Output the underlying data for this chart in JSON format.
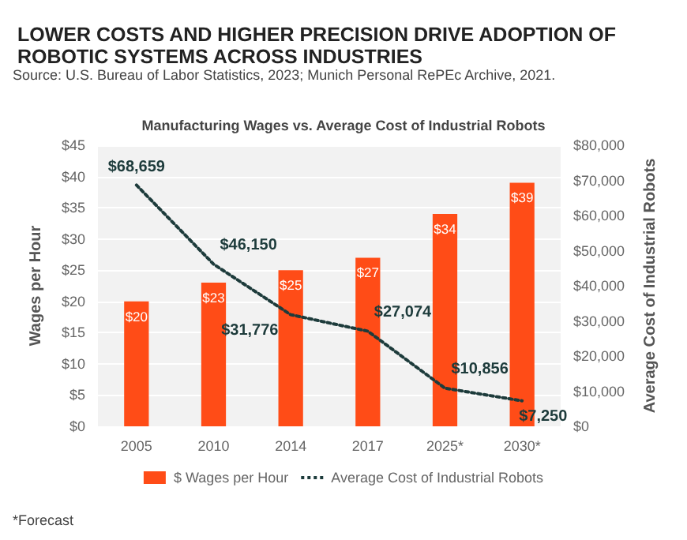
{
  "chart_data": {
    "type": "bar",
    "title": "LOWER COSTS AND HIGHER PRECISION DRIVE ADOPTION OF ROBOTIC SYSTEMS ACROSS INDUSTRIES",
    "subtitle": "Manufacturing Wages vs. Average Cost of Industrial Robots",
    "annotations": [
      "Source: U.S. Bureau of Labor Statistics, 2023; Munich Personal RePEc Archive, 2021.",
      "*Forecast"
    ],
    "ylabel": "Wages per Hour",
    "y2label": "Average Cost of Industrial Robots",
    "categories": [
      "2005",
      "2010",
      "2014",
      "2017",
      "2025*",
      "2030*"
    ],
    "series": [
      {
        "name": "$ Wages per Hour",
        "color": "#ff4c17",
        "values": [
          20,
          23,
          25,
          27,
          34,
          39
        ],
        "value_labels": [
          "$20",
          "$23",
          "$25",
          "$27",
          "$34",
          "$39"
        ]
      },
      {
        "name": "Average Cost of Industrial Robots",
        "type": "line",
        "axis": "y2",
        "color": "#1d3b3b",
        "line_style": "dotted",
        "marker": "none",
        "values": [
          68659,
          46150,
          31776,
          27074,
          10856,
          7250
        ],
        "value_labels": [
          "$68,659",
          "$46,150",
          "$31,776",
          "$27,074",
          "$10,856",
          "$7,250"
        ]
      }
    ],
    "ylim": [
      0,
      45
    ],
    "yticks": [
      {
        "value": 0,
        "label": "$0"
      },
      {
        "value": 5,
        "label": "$5"
      },
      {
        "value": 10,
        "label": "$10"
      },
      {
        "value": 15,
        "label": "$15"
      },
      {
        "value": 20,
        "label": "$20"
      },
      {
        "value": 25,
        "label": "$25"
      },
      {
        "value": 30,
        "label": "$30"
      },
      {
        "value": 35,
        "label": "$35"
      },
      {
        "value": 40,
        "label": "$40"
      },
      {
        "value": 45,
        "label": "$45"
      }
    ],
    "y2lim": [
      0,
      80000
    ],
    "y2ticks": [
      {
        "value": 0,
        "label": "$0"
      },
      {
        "value": 10000,
        "label": "$10,000"
      },
      {
        "value": 20000,
        "label": "$20,000"
      },
      {
        "value": 30000,
        "label": "$30,000"
      },
      {
        "value": 40000,
        "label": "$40,000"
      },
      {
        "value": 50000,
        "label": "$50,000"
      },
      {
        "value": 60000,
        "label": "$60,000"
      },
      {
        "value": 70000,
        "label": "$70,000"
      },
      {
        "value": 80000,
        "label": "$80,000"
      }
    ],
    "grid": "y",
    "legend": "bottom"
  }
}
